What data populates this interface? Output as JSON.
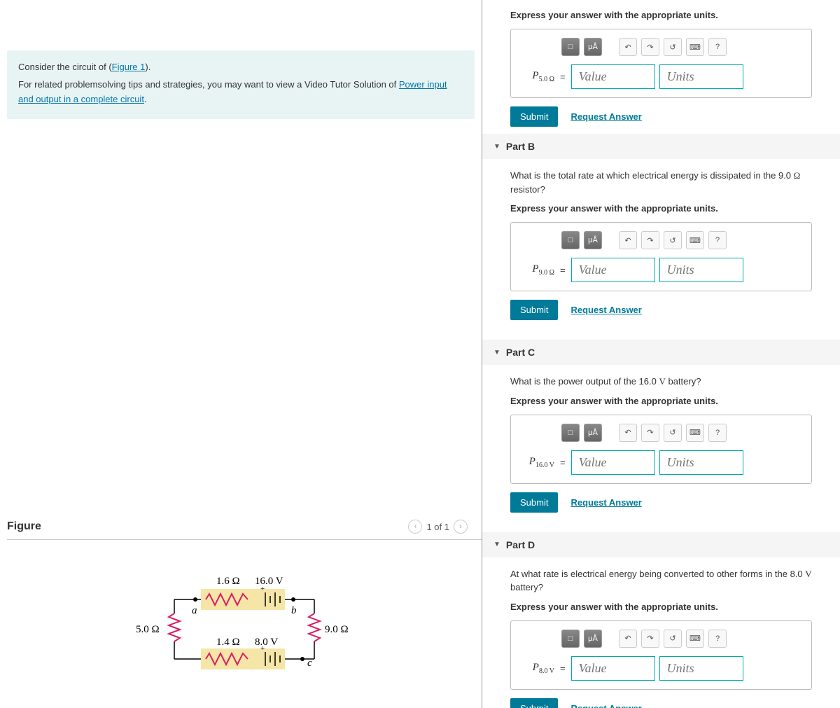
{
  "intro": {
    "line1_prefix": "Consider the circuit of (",
    "figure_link": "Figure 1",
    "line1_suffix": ").",
    "line2": "For related problemsolving tips and strategies, you may want to view a Video Tutor Solution of ",
    "tutor_link": "Power input and output in a complete circuit",
    "line2_suffix": "."
  },
  "figure": {
    "title": "Figure",
    "pager_text": "1 of 1",
    "circuit": {
      "r_top_internal": "1.6 Ω",
      "emf_top": "16.0 V",
      "r_left": "5.0 Ω",
      "r_right": "9.0 Ω",
      "r_bot_internal": "1.4 Ω",
      "emf_bot": "8.0 V",
      "node_a": "a",
      "node_b": "b",
      "node_c": "c",
      "colors": {
        "wire": "#000000",
        "resistor_highlight": "#d91e63",
        "battery_box": "#f5e6a8"
      }
    }
  },
  "parts": [
    {
      "id": "A",
      "header": "",
      "question": "",
      "express": "Express your answer with the appropriate units.",
      "var_html": "P<sub>5.0 Ω</sub>",
      "value_ph": "Value",
      "units_ph": "Units",
      "submit": "Submit",
      "request": "Request Answer",
      "show_header": false
    },
    {
      "id": "B",
      "header": "Part B",
      "question": "What is the total rate at which electrical energy is dissipated in the 9.0 Ω resistor?",
      "express": "Express your answer with the appropriate units.",
      "var_html": "P<sub>9.0 Ω</sub>",
      "value_ph": "Value",
      "units_ph": "Units",
      "submit": "Submit",
      "request": "Request Answer",
      "show_header": true
    },
    {
      "id": "C",
      "header": "Part C",
      "question": "What is the power output of the 16.0 V battery?",
      "express": "Express your answer with the appropriate units.",
      "var_html": "P<sub>16.0 V</sub>",
      "value_ph": "Value",
      "units_ph": "Units",
      "submit": "Submit",
      "request": "Request Answer",
      "show_header": true
    },
    {
      "id": "D",
      "header": "Part D",
      "question": "At what rate is electrical energy being converted to other forms in the 8.0 V battery?",
      "express": "Express your answer with the appropriate units.",
      "var_html": "P<sub>8.0 V</sub>",
      "value_ph": "Value",
      "units_ph": "Units",
      "submit": "Submit",
      "request": "Request Answer",
      "show_header": true
    }
  ],
  "toolbar": {
    "templates": "□",
    "special": "μÅ",
    "undo": "↶",
    "redo": "↷",
    "reset": "↺",
    "keyboard": "⌨",
    "help": "?"
  },
  "colors": {
    "accent": "#007a99",
    "intro_bg": "#e8f4f4",
    "input_border": "#0aa"
  }
}
